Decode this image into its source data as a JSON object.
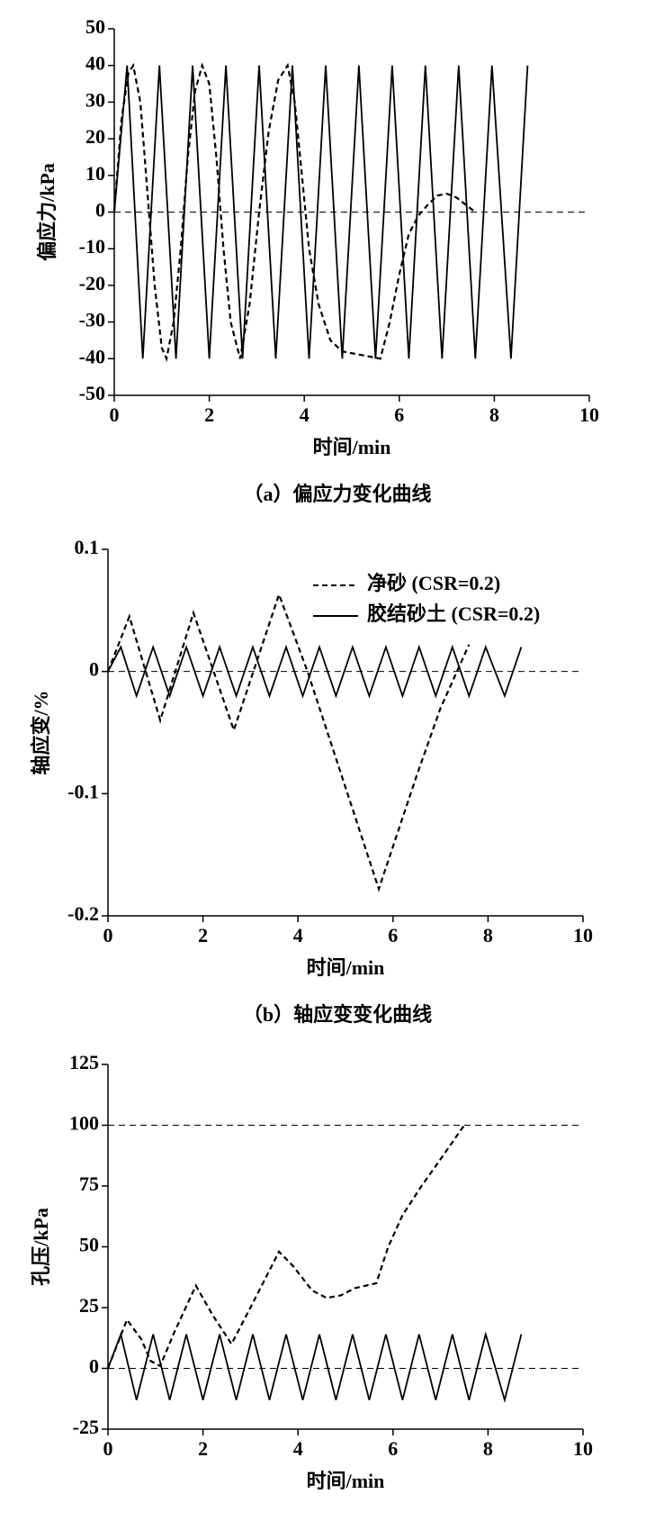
{
  "chart_data": [
    {
      "type": "line",
      "x_label": "时间/min",
      "y_label": "偏应力/kPa",
      "caption": "（a）偏应力变化曲线",
      "xlim": [
        0,
        10
      ],
      "xticks": [
        0,
        2,
        4,
        6,
        8,
        10
      ],
      "ylim": [
        -50,
        50
      ],
      "yticks": [
        -50,
        -40,
        -30,
        -20,
        -10,
        0,
        10,
        20,
        30,
        40,
        50
      ],
      "reference_lines": [
        0
      ],
      "series": [
        {
          "style": "dashed",
          "color": "#000000",
          "x": [
            0,
            0.15,
            0.3,
            0.4,
            0.55,
            0.7,
            0.85,
            1.0,
            1.1,
            1.25,
            1.4,
            1.55,
            1.7,
            1.85,
            2.0,
            2.15,
            2.3,
            2.45,
            2.65,
            2.85,
            3.05,
            3.25,
            3.45,
            3.65,
            3.8,
            3.95,
            4.1,
            4.3,
            4.55,
            4.8,
            5.2,
            5.6,
            5.8,
            6.0,
            6.2,
            6.4,
            6.6,
            6.8,
            7.0,
            7.2,
            7.4,
            7.6
          ],
          "values": [
            0,
            25,
            38,
            40,
            30,
            5,
            -20,
            -37,
            -40,
            -30,
            -10,
            15,
            33,
            40,
            35,
            15,
            -10,
            -30,
            -40,
            -25,
            0,
            22,
            36,
            40,
            30,
            10,
            -10,
            -25,
            -35,
            -38,
            -39,
            -40,
            -30,
            -17,
            -6,
            -1,
            2,
            4.5,
            5,
            4,
            2,
            0
          ]
        },
        {
          "style": "solid",
          "color": "#000000",
          "x": [
            0,
            0.27,
            0.6,
            0.95,
            1.3,
            1.65,
            2.0,
            2.35,
            2.7,
            3.05,
            3.4,
            3.75,
            4.1,
            4.45,
            4.8,
            5.15,
            5.5,
            5.85,
            6.2,
            6.55,
            6.9,
            7.25,
            7.6,
            7.95,
            8.35,
            8.7
          ],
          "values": [
            0,
            40,
            -40,
            40,
            -40,
            40,
            -40,
            40,
            -40,
            40,
            -40,
            40,
            -40,
            40,
            -40,
            40,
            -40,
            40,
            -40,
            40,
            -40,
            40,
            -40,
            40,
            -40,
            40
          ]
        }
      ]
    },
    {
      "type": "line",
      "x_label": "时间/min",
      "y_label": "轴应变/%",
      "caption": "（b）轴应变变化曲线",
      "xlim": [
        0,
        10
      ],
      "xticks": [
        0,
        2,
        4,
        6,
        8,
        10
      ],
      "ylim": [
        -0.2,
        0.1
      ],
      "yticks": [
        -0.2,
        -0.1,
        0,
        0.1
      ],
      "reference_lines": [
        0
      ],
      "legend": "upper right",
      "series": [
        {
          "name": "净砂 (CSR=0.2)",
          "style": "dashed",
          "color": "#000000",
          "x": [
            0,
            0.45,
            1.1,
            1.8,
            2.65,
            3.6,
            4.2,
            5.7,
            6.5,
            7.0,
            7.6
          ],
          "values": [
            0,
            0.045,
            -0.04,
            0.048,
            -0.048,
            0.063,
            0,
            -0.178,
            -0.085,
            -0.03,
            0.022
          ]
        },
        {
          "name": "胶结砂土 (CSR=0.2)",
          "style": "solid",
          "color": "#000000",
          "x": [
            0,
            0.27,
            0.6,
            0.95,
            1.3,
            1.65,
            2.0,
            2.35,
            2.7,
            3.05,
            3.4,
            3.75,
            4.1,
            4.45,
            4.8,
            5.15,
            5.5,
            5.85,
            6.2,
            6.55,
            6.9,
            7.25,
            7.6,
            7.95,
            8.35,
            8.7
          ],
          "values": [
            0,
            0.02,
            -0.02,
            0.02,
            -0.02,
            0.02,
            -0.02,
            0.02,
            -0.02,
            0.02,
            -0.02,
            0.02,
            -0.02,
            0.02,
            -0.02,
            0.02,
            -0.02,
            0.02,
            -0.02,
            0.02,
            -0.02,
            0.02,
            -0.02,
            0.02,
            -0.02,
            0.02
          ]
        }
      ]
    },
    {
      "type": "line",
      "x_label": "时间/min",
      "y_label": "孔压/kPa",
      "xlim": [
        0,
        10
      ],
      "xticks": [
        0,
        2,
        4,
        6,
        8,
        10
      ],
      "ylim": [
        -25,
        125
      ],
      "yticks": [
        -25,
        0,
        25,
        50,
        75,
        100,
        125
      ],
      "reference_lines": [
        0,
        100
      ],
      "series": [
        {
          "style": "dashed",
          "color": "#000000",
          "x": [
            0,
            0.4,
            0.7,
            0.9,
            1.1,
            1.4,
            1.85,
            2.2,
            2.6,
            3.0,
            3.6,
            3.9,
            4.3,
            4.6,
            4.9,
            5.2,
            5.65,
            5.9,
            6.2,
            6.6,
            7.0,
            7.5
          ],
          "values": [
            0,
            20,
            12,
            3,
            1,
            15,
            34,
            22,
            10,
            25,
            48,
            42,
            32,
            29,
            30,
            33,
            35,
            50,
            63,
            75,
            86,
            100
          ]
        },
        {
          "style": "solid",
          "color": "#000000",
          "x": [
            0,
            0.27,
            0.6,
            0.95,
            1.3,
            1.65,
            2.0,
            2.35,
            2.7,
            3.05,
            3.4,
            3.75,
            4.1,
            4.45,
            4.8,
            5.15,
            5.5,
            5.85,
            6.2,
            6.55,
            6.9,
            7.25,
            7.6,
            7.95,
            8.35,
            8.7
          ],
          "values": [
            0,
            14,
            -13,
            14,
            -13,
            14,
            -13,
            14,
            -13,
            14,
            -13,
            14,
            -13,
            14,
            -13,
            14,
            -13,
            14,
            -13,
            14,
            -13,
            14,
            -13,
            14,
            -13,
            14
          ]
        }
      ]
    }
  ]
}
